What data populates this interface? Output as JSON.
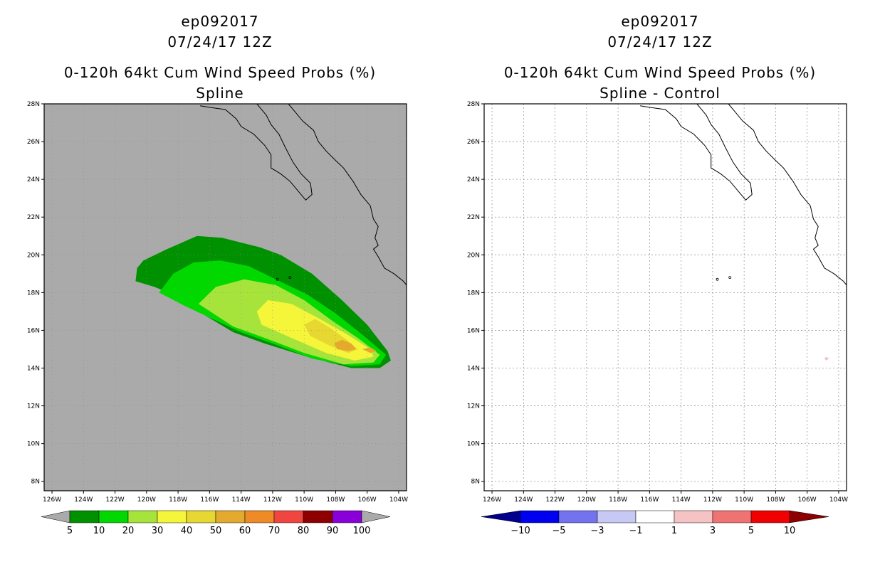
{
  "chart_data": [
    {
      "type": "filled-contour-map",
      "storm_id": "ep092017",
      "datetime": "07/24/17 12Z",
      "title": "0-120h 64kt Cum Wind Speed Probs (%)",
      "subtitle": "Spline",
      "lon_labels": [
        "126W",
        "124W",
        "122W",
        "120W",
        "118W",
        "116W",
        "114W",
        "112W",
        "110W",
        "108W",
        "106W",
        "104W"
      ],
      "lat_labels": [
        "8N",
        "10N",
        "12N",
        "14N",
        "16N",
        "18N",
        "20N",
        "22N",
        "24N",
        "26N",
        "28N"
      ],
      "lon_range": [
        -126.5,
        -103.5
      ],
      "lat_range": [
        7.5,
        28.0
      ],
      "background": "#aaaaaa",
      "levels": [
        {
          "label": "5",
          "color": "#009100"
        },
        {
          "label": "10",
          "color": "#00d800"
        },
        {
          "label": "20",
          "color": "#a6e43c"
        },
        {
          "label": "30",
          "color": "#f5f53a"
        },
        {
          "label": "40",
          "color": "#e6d830"
        },
        {
          "label": "50",
          "color": "#e3aa2e"
        },
        {
          "label": "60",
          "color": "#ef8a27"
        },
        {
          "label": "70",
          "color": "#f0463f"
        },
        {
          "label": "80",
          "color": "#8e0000"
        },
        {
          "label": "90",
          "color": "#8a00d8"
        },
        {
          "label": "100",
          "color": ""
        }
      ],
      "contours": [
        {
          "level": 5,
          "lonlat": [
            [
              -120.2,
              19.7
            ],
            [
              -118.7,
              20.3
            ],
            [
              -116.8,
              21.0
            ],
            [
              -115.2,
              20.9
            ],
            [
              -112.8,
              20.4
            ],
            [
              -111.5,
              20.0
            ],
            [
              -109.5,
              19.0
            ],
            [
              -107.6,
              17.6
            ],
            [
              -106.0,
              16.3
            ],
            [
              -104.7,
              14.9
            ],
            [
              -104.5,
              14.4
            ],
            [
              -105.2,
              14.0
            ],
            [
              -107.0,
              14.0
            ],
            [
              -109.8,
              14.6
            ],
            [
              -112.5,
              15.3
            ],
            [
              -114.5,
              15.9
            ],
            [
              -116.5,
              16.9
            ],
            [
              -118.0,
              17.8
            ],
            [
              -119.5,
              18.3
            ],
            [
              -120.7,
              18.6
            ],
            [
              -120.6,
              19.3
            ],
            [
              -120.2,
              19.7
            ]
          ]
        },
        {
          "level": 10,
          "lonlat": [
            [
              -119.2,
              18.0
            ],
            [
              -118.3,
              19.0
            ],
            [
              -117.0,
              19.6
            ],
            [
              -115.3,
              19.7
            ],
            [
              -113.5,
              19.4
            ],
            [
              -111.8,
              18.7
            ],
            [
              -109.8,
              17.9
            ],
            [
              -108.0,
              16.9
            ],
            [
              -106.2,
              15.7
            ],
            [
              -104.8,
              14.7
            ],
            [
              -105.2,
              14.2
            ],
            [
              -107.0,
              14.1
            ],
            [
              -109.5,
              14.5
            ],
            [
              -112.0,
              15.3
            ],
            [
              -114.0,
              15.9
            ],
            [
              -115.8,
              16.6
            ],
            [
              -117.6,
              17.3
            ],
            [
              -119.2,
              18.0
            ]
          ]
        },
        {
          "level": 20,
          "lonlat": [
            [
              -116.7,
              17.4
            ],
            [
              -115.6,
              18.3
            ],
            [
              -113.8,
              18.7
            ],
            [
              -111.8,
              18.4
            ],
            [
              -110.0,
              17.6
            ],
            [
              -108.2,
              16.5
            ],
            [
              -106.6,
              15.6
            ],
            [
              -105.2,
              14.7
            ],
            [
              -105.6,
              14.3
            ],
            [
              -107.5,
              14.2
            ],
            [
              -110.0,
              14.8
            ],
            [
              -112.5,
              15.6
            ],
            [
              -114.5,
              16.2
            ],
            [
              -116.7,
              17.4
            ]
          ]
        },
        {
          "level": 30,
          "lonlat": [
            [
              -113.0,
              17.0
            ],
            [
              -112.3,
              17.6
            ],
            [
              -110.8,
              17.4
            ],
            [
              -109.0,
              16.6
            ],
            [
              -107.3,
              15.8
            ],
            [
              -105.8,
              15.0
            ],
            [
              -105.6,
              14.6
            ],
            [
              -106.8,
              14.4
            ],
            [
              -108.6,
              14.8
            ],
            [
              -110.8,
              15.6
            ],
            [
              -112.7,
              16.3
            ],
            [
              -113.0,
              17.0
            ]
          ]
        },
        {
          "level": 40,
          "lonlat": [
            [
              -110.0,
              16.3
            ],
            [
              -109.3,
              16.6
            ],
            [
              -108.3,
              16.1
            ],
            [
              -107.3,
              15.5
            ],
            [
              -106.6,
              15.0
            ],
            [
              -107.2,
              14.8
            ],
            [
              -108.4,
              15.2
            ],
            [
              -109.6,
              15.7
            ],
            [
              -110.0,
              16.3
            ]
          ]
        },
        {
          "level": 50,
          "lonlat": [
            [
              -108.1,
              15.3
            ],
            [
              -107.6,
              15.5
            ],
            [
              -107.0,
              15.3
            ],
            [
              -106.7,
              15.0
            ],
            [
              -107.2,
              14.9
            ],
            [
              -107.9,
              15.0
            ],
            [
              -108.1,
              15.3
            ]
          ]
        },
        {
          "level": 50,
          "lonlat": [
            [
              -106.3,
              15.0
            ],
            [
              -105.8,
              15.1
            ],
            [
              -105.4,
              14.9
            ],
            [
              -105.8,
              14.8
            ],
            [
              -106.3,
              15.0
            ]
          ]
        }
      ]
    },
    {
      "type": "filled-contour-map",
      "storm_id": "ep092017",
      "datetime": "07/24/17 12Z",
      "title": "0-120h 64kt Cum Wind Speed Probs (%)",
      "subtitle": "Spline - Control",
      "lon_labels": [
        "126W",
        "124W",
        "122W",
        "120W",
        "118W",
        "116W",
        "114W",
        "112W",
        "110W",
        "108W",
        "106W",
        "104W"
      ],
      "lat_labels": [
        "8N",
        "10N",
        "12N",
        "14N",
        "16N",
        "18N",
        "20N",
        "22N",
        "24N",
        "26N",
        "28N"
      ],
      "lon_range": [
        -126.5,
        -103.5
      ],
      "lat_range": [
        7.5,
        28.0
      ],
      "background": "#ffffff",
      "grid": true,
      "levels": [
        {
          "label": "-10",
          "color": "#00008c"
        },
        {
          "label": "-5",
          "color": "#0000f0"
        },
        {
          "label": "-3",
          "color": "#7373f0"
        },
        {
          "label": "-1",
          "color": "#c8c8f5"
        },
        {
          "label": "1",
          "color": "#ffffff"
        },
        {
          "label": "3",
          "color": "#f5c3c3"
        },
        {
          "label": "5",
          "color": "#f07373"
        },
        {
          "label": "10",
          "color": "#f00000"
        },
        {
          "label": "",
          "color": "#8c0000"
        }
      ],
      "contours": [
        {
          "level": 1,
          "lonlat": [
            [
              -105.1,
              15.0
            ],
            [
              -104.6,
              14.8
            ],
            [
              -104.4,
              14.4
            ],
            [
              -104.8,
              14.1
            ],
            [
              -105.3,
              14.3
            ],
            [
              -105.4,
              14.7
            ],
            [
              -105.1,
              15.0
            ]
          ]
        },
        {
          "level": 3,
          "lonlat": [
            [
              -104.8,
              14.6
            ],
            [
              -104.6,
              14.5
            ],
            [
              -104.8,
              14.4
            ],
            [
              -104.9,
              14.5
            ],
            [
              -104.8,
              14.6
            ]
          ]
        }
      ]
    }
  ]
}
